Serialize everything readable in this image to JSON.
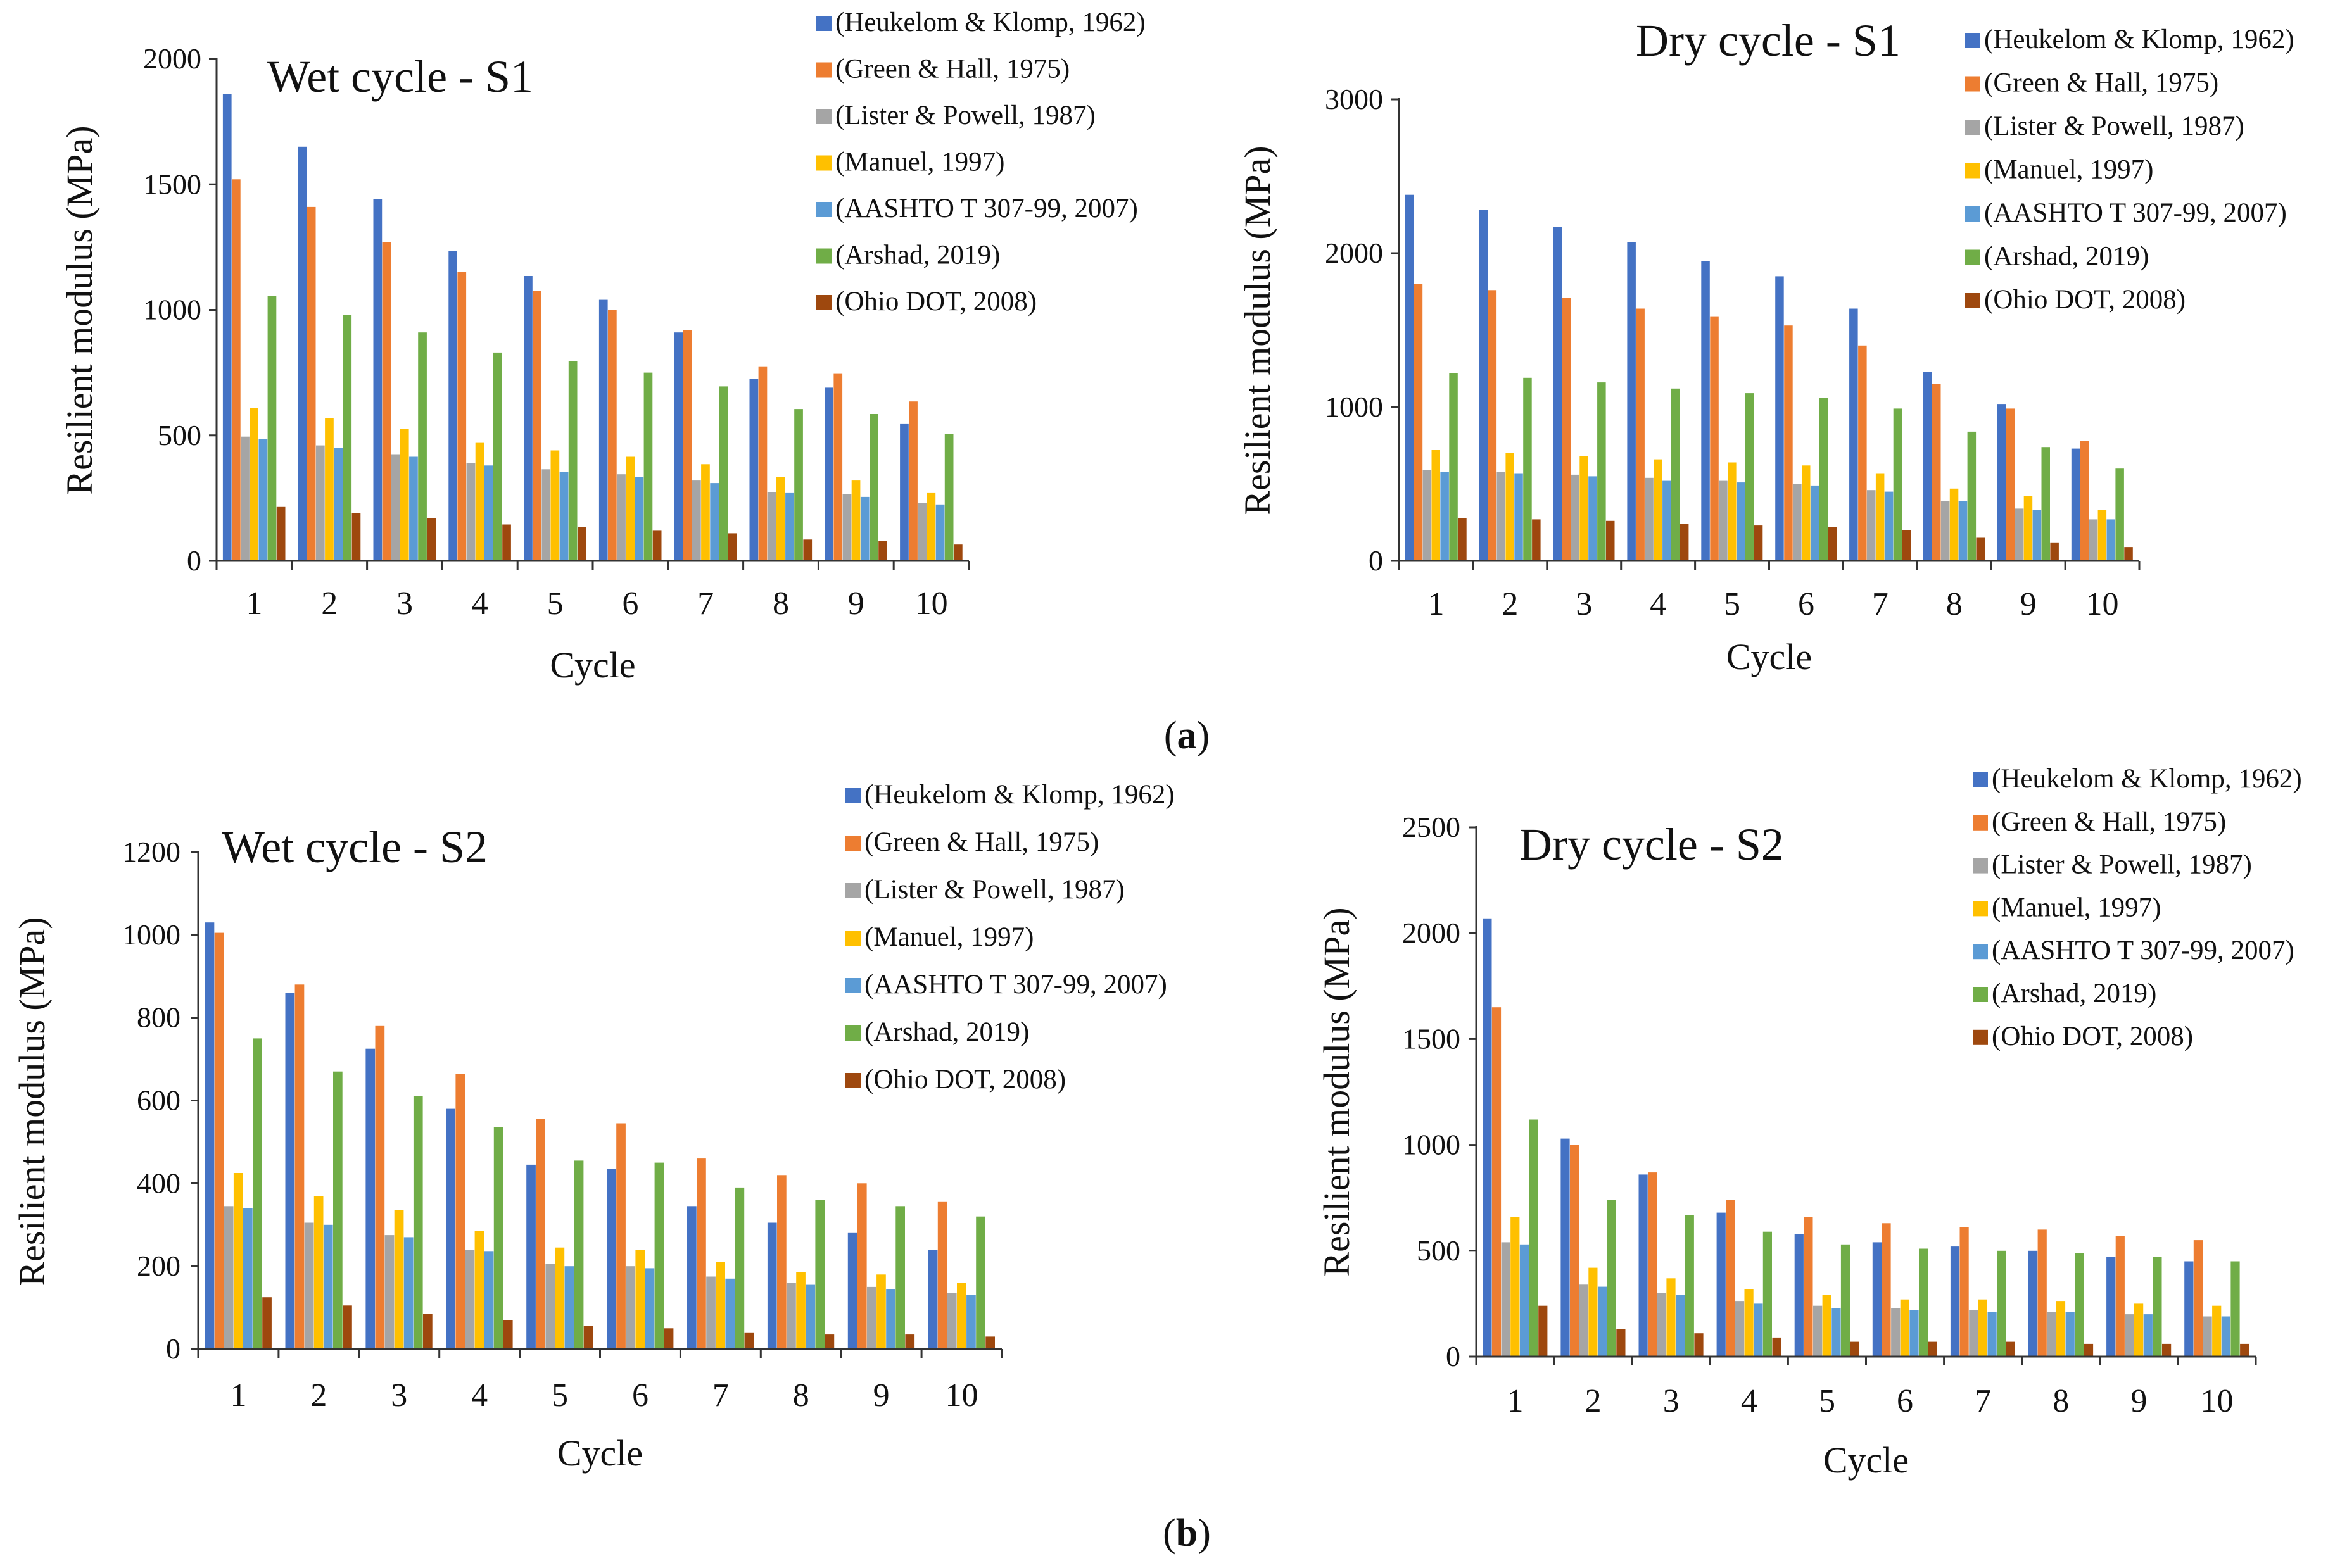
{
  "figure": {
    "panel_labels": [
      "a",
      "b"
    ],
    "series_colors": [
      "#4472C4",
      "#ED7D31",
      "#A5A5A5",
      "#FFC000",
      "#5B9BD5",
      "#70AD47",
      "#9E480E"
    ]
  },
  "chart_data": [
    {
      "id": "wet-s1",
      "type": "bar",
      "title": "Wet cycle - S1",
      "xlabel": "Cycle",
      "ylabel": "Resilient modulus (MPa)",
      "ylim": [
        0,
        2000
      ],
      "yticks": [
        0,
        500,
        1000,
        1500,
        2000
      ],
      "categories": [
        "1",
        "2",
        "3",
        "4",
        "5",
        "6",
        "7",
        "8",
        "9",
        "10"
      ],
      "legend_position": "top-right",
      "series": [
        {
          "name": "(Heukelom & Klomp, 1962)",
          "values": [
            1860,
            1650,
            1440,
            1235,
            1135,
            1040,
            910,
            725,
            690,
            545
          ]
        },
        {
          "name": "(Green & Hall, 1975)",
          "values": [
            1520,
            1410,
            1270,
            1150,
            1075,
            1000,
            920,
            775,
            745,
            635
          ]
        },
        {
          "name": "(Lister & Powell, 1987)",
          "values": [
            495,
            460,
            425,
            390,
            365,
            345,
            320,
            275,
            265,
            230
          ]
        },
        {
          "name": "(Manuel, 1997)",
          "values": [
            610,
            570,
            525,
            470,
            440,
            415,
            385,
            335,
            320,
            270
          ]
        },
        {
          "name": "(AASHTO T 307-99, 2007)",
          "values": [
            485,
            450,
            415,
            380,
            355,
            335,
            310,
            270,
            255,
            225
          ]
        },
        {
          "name": "(Arshad, 2019)",
          "values": [
            1055,
            980,
            910,
            830,
            795,
            750,
            695,
            605,
            585,
            505
          ]
        },
        {
          "name": "(Ohio DOT, 2008)",
          "values": [
            215,
            190,
            170,
            145,
            135,
            120,
            110,
            85,
            80,
            65
          ]
        }
      ]
    },
    {
      "id": "dry-s1",
      "type": "bar",
      "title": "Dry cycle - S1",
      "xlabel": "Cycle",
      "ylabel": "Resilient modulus (MPa)",
      "ylim": [
        0,
        3000
      ],
      "yticks": [
        0,
        1000,
        2000,
        3000
      ],
      "categories": [
        "1",
        "2",
        "3",
        "4",
        "5",
        "6",
        "7",
        "8",
        "9",
        "10"
      ],
      "legend_position": "top-right",
      "series": [
        {
          "name": "(Heukelom & Klomp, 1962)",
          "values": [
            2380,
            2280,
            2170,
            2070,
            1950,
            1850,
            1640,
            1230,
            1020,
            730
          ]
        },
        {
          "name": "(Green & Hall, 1975)",
          "values": [
            1800,
            1760,
            1710,
            1640,
            1590,
            1530,
            1400,
            1150,
            990,
            780
          ]
        },
        {
          "name": "(Lister & Powell, 1987)",
          "values": [
            590,
            580,
            560,
            540,
            520,
            500,
            460,
            390,
            340,
            270
          ]
        },
        {
          "name": "(Manuel, 1997)",
          "values": [
            720,
            700,
            680,
            660,
            640,
            620,
            570,
            470,
            420,
            330
          ]
        },
        {
          "name": "(AASHTO T 307-99, 2007)",
          "values": [
            580,
            570,
            550,
            520,
            510,
            490,
            450,
            390,
            330,
            270
          ]
        },
        {
          "name": "(Arshad, 2019)",
          "values": [
            1220,
            1190,
            1160,
            1120,
            1090,
            1060,
            990,
            840,
            740,
            600
          ]
        },
        {
          "name": "(Ohio DOT, 2008)",
          "values": [
            280,
            270,
            260,
            240,
            230,
            220,
            200,
            150,
            120,
            90
          ]
        }
      ]
    },
    {
      "id": "wet-s2",
      "type": "bar",
      "title": "Wet cycle - S2",
      "xlabel": "Cycle",
      "ylabel": "Resilient modulus (MPa)",
      "ylim": [
        0,
        1200
      ],
      "yticks": [
        0,
        200,
        400,
        600,
        800,
        1000,
        1200
      ],
      "categories": [
        "1",
        "2",
        "3",
        "4",
        "5",
        "6",
        "7",
        "8",
        "9",
        "10"
      ],
      "legend_position": "top-right",
      "series": [
        {
          "name": "(Heukelom & Klomp, 1962)",
          "values": [
            1030,
            860,
            725,
            580,
            445,
            435,
            345,
            305,
            280,
            240
          ]
        },
        {
          "name": "(Green & Hall, 1975)",
          "values": [
            1005,
            880,
            780,
            665,
            555,
            545,
            460,
            420,
            400,
            355
          ]
        },
        {
          "name": "(Lister & Powell, 1987)",
          "values": [
            345,
            305,
            275,
            240,
            205,
            200,
            175,
            160,
            150,
            135
          ]
        },
        {
          "name": "(Manuel, 1997)",
          "values": [
            425,
            370,
            335,
            285,
            245,
            240,
            210,
            185,
            180,
            160
          ]
        },
        {
          "name": "(AASHTO T 307-99, 2007)",
          "values": [
            340,
            300,
            270,
            235,
            200,
            195,
            170,
            155,
            145,
            130
          ]
        },
        {
          "name": "(Arshad, 2019)",
          "values": [
            750,
            670,
            610,
            535,
            455,
            450,
            390,
            360,
            345,
            320
          ]
        },
        {
          "name": "(Ohio DOT, 2008)",
          "values": [
            125,
            105,
            85,
            70,
            55,
            50,
            40,
            35,
            35,
            30
          ]
        }
      ]
    },
    {
      "id": "dry-s2",
      "type": "bar",
      "title": "Dry cycle - S2",
      "xlabel": "Cycle",
      "ylabel": "Resilient modulus (MPa)",
      "ylim": [
        0,
        2500
      ],
      "yticks": [
        0,
        500,
        1000,
        1500,
        2000,
        2500
      ],
      "categories": [
        "1",
        "2",
        "3",
        "4",
        "5",
        "6",
        "7",
        "8",
        "9",
        "10"
      ],
      "legend_position": "top-right",
      "series": [
        {
          "name": "(Heukelom & Klomp, 1962)",
          "values": [
            2070,
            1030,
            860,
            680,
            580,
            540,
            520,
            500,
            470,
            450
          ]
        },
        {
          "name": "(Green & Hall, 1975)",
          "values": [
            1650,
            1000,
            870,
            740,
            660,
            630,
            610,
            600,
            570,
            550
          ]
        },
        {
          "name": "(Lister & Powell, 1987)",
          "values": [
            540,
            340,
            300,
            260,
            240,
            230,
            220,
            210,
            200,
            190
          ]
        },
        {
          "name": "(Manuel, 1997)",
          "values": [
            660,
            420,
            370,
            320,
            290,
            270,
            270,
            260,
            250,
            240
          ]
        },
        {
          "name": "(AASHTO T 307-99, 2007)",
          "values": [
            530,
            330,
            290,
            250,
            230,
            220,
            210,
            210,
            200,
            190
          ]
        },
        {
          "name": "(Arshad, 2019)",
          "values": [
            1120,
            740,
            670,
            590,
            530,
            510,
            500,
            490,
            470,
            450
          ]
        },
        {
          "name": "(Ohio DOT, 2008)",
          "values": [
            240,
            130,
            110,
            90,
            70,
            70,
            70,
            60,
            60,
            60
          ]
        }
      ]
    }
  ]
}
